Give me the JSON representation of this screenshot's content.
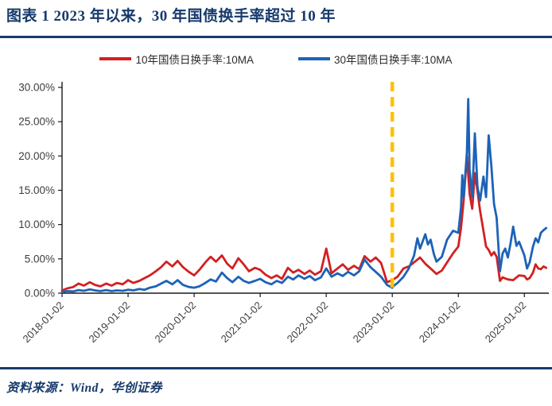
{
  "header": {
    "title": "图表 1  2023 年以来，30 年国债换手率超过 10 年"
  },
  "legend": [
    {
      "label": "10年国债日换手率:10MA",
      "color": "#D22021"
    },
    {
      "label": "30年国债日换手率:10MA",
      "color": "#1C63B7"
    }
  ],
  "footer": {
    "source": "资料来源：Wind，华创证券"
  },
  "colors": {
    "accent_navy": "#173A6C",
    "series_red": "#D22021",
    "series_blue": "#1C63B7",
    "event_line_yellow": "#FFC000",
    "axis_black": "#1a1a1a",
    "tick_text": "#3d3d3d"
  },
  "chart_data": {
    "type": "line",
    "title": "2023 年以来，30 年国债换手率超过 10 年",
    "xlabel": "",
    "ylabel": "",
    "grid": false,
    "legend_position": "top",
    "ylim": [
      0,
      30
    ],
    "x_range": [
      2018.0,
      2025.37
    ],
    "y_ticks": [
      "0.00%",
      "5.00%",
      "10.00%",
      "15.00%",
      "20.00%",
      "25.00%",
      "30.00%"
    ],
    "x_ticks": [
      "2018-01-02",
      "2019-01-02",
      "2020-01-02",
      "2021-01-02",
      "2022-01-02",
      "2023-01-02",
      "2024-01-02",
      "2025-01-02"
    ],
    "annotations": [
      {
        "type": "vline",
        "x": 2023.0,
        "style": "dashed",
        "color": "#FFC000",
        "note": "2023-01-02"
      }
    ],
    "series": [
      {
        "name": "10年国债日换手率:10MA",
        "color": "#D22021",
        "points": [
          [
            2018.0,
            0.4
          ],
          [
            2018.08,
            0.7
          ],
          [
            2018.17,
            0.9
          ],
          [
            2018.25,
            1.4
          ],
          [
            2018.33,
            1.1
          ],
          [
            2018.42,
            1.6
          ],
          [
            2018.5,
            1.2
          ],
          [
            2018.58,
            1.0
          ],
          [
            2018.67,
            1.4
          ],
          [
            2018.75,
            1.1
          ],
          [
            2018.83,
            1.5
          ],
          [
            2018.92,
            1.3
          ],
          [
            2019.0,
            1.9
          ],
          [
            2019.08,
            1.5
          ],
          [
            2019.17,
            1.8
          ],
          [
            2019.25,
            2.2
          ],
          [
            2019.33,
            2.6
          ],
          [
            2019.42,
            3.2
          ],
          [
            2019.5,
            3.8
          ],
          [
            2019.58,
            4.6
          ],
          [
            2019.67,
            3.9
          ],
          [
            2019.75,
            4.7
          ],
          [
            2019.83,
            3.8
          ],
          [
            2019.92,
            3.1
          ],
          [
            2020.0,
            2.6
          ],
          [
            2020.08,
            3.4
          ],
          [
            2020.17,
            4.5
          ],
          [
            2020.25,
            5.3
          ],
          [
            2020.33,
            4.6
          ],
          [
            2020.42,
            5.5
          ],
          [
            2020.5,
            4.3
          ],
          [
            2020.58,
            3.6
          ],
          [
            2020.67,
            5.1
          ],
          [
            2020.75,
            4.2
          ],
          [
            2020.83,
            3.2
          ],
          [
            2020.92,
            3.7
          ],
          [
            2021.0,
            3.4
          ],
          [
            2021.08,
            2.7
          ],
          [
            2021.17,
            2.2
          ],
          [
            2021.25,
            2.6
          ],
          [
            2021.33,
            2.1
          ],
          [
            2021.42,
            3.7
          ],
          [
            2021.5,
            3.0
          ],
          [
            2021.58,
            3.4
          ],
          [
            2021.67,
            2.8
          ],
          [
            2021.75,
            3.3
          ],
          [
            2021.83,
            2.7
          ],
          [
            2021.92,
            3.2
          ],
          [
            2022.0,
            6.5
          ],
          [
            2022.08,
            2.9
          ],
          [
            2022.17,
            3.6
          ],
          [
            2022.25,
            4.2
          ],
          [
            2022.33,
            3.4
          ],
          [
            2022.42,
            4.0
          ],
          [
            2022.5,
            3.5
          ],
          [
            2022.58,
            5.4
          ],
          [
            2022.67,
            4.6
          ],
          [
            2022.75,
            5.2
          ],
          [
            2022.83,
            4.4
          ],
          [
            2022.92,
            1.6
          ],
          [
            2023.0,
            1.9
          ],
          [
            2023.08,
            2.4
          ],
          [
            2023.17,
            3.6
          ],
          [
            2023.25,
            3.9
          ],
          [
            2023.33,
            4.5
          ],
          [
            2023.42,
            5.2
          ],
          [
            2023.5,
            4.3
          ],
          [
            2023.58,
            3.6
          ],
          [
            2023.67,
            2.8
          ],
          [
            2023.75,
            3.3
          ],
          [
            2023.83,
            4.5
          ],
          [
            2023.92,
            5.8
          ],
          [
            2024.0,
            6.8
          ],
          [
            2024.04,
            9.5
          ],
          [
            2024.08,
            13.5
          ],
          [
            2024.13,
            20.0
          ],
          [
            2024.17,
            14.5
          ],
          [
            2024.21,
            12.3
          ],
          [
            2024.25,
            17.5
          ],
          [
            2024.29,
            14.9
          ],
          [
            2024.33,
            12.0
          ],
          [
            2024.38,
            9.1
          ],
          [
            2024.42,
            6.8
          ],
          [
            2024.46,
            6.3
          ],
          [
            2024.5,
            5.5
          ],
          [
            2024.54,
            6.0
          ],
          [
            2024.58,
            5.3
          ],
          [
            2024.63,
            1.8
          ],
          [
            2024.67,
            2.3
          ],
          [
            2024.75,
            2.0
          ],
          [
            2024.83,
            1.9
          ],
          [
            2024.92,
            2.6
          ],
          [
            2025.0,
            2.5
          ],
          [
            2025.04,
            2.0
          ],
          [
            2025.08,
            2.2
          ],
          [
            2025.13,
            3.0
          ],
          [
            2025.17,
            4.2
          ],
          [
            2025.21,
            3.6
          ],
          [
            2025.25,
            3.5
          ],
          [
            2025.29,
            3.9
          ],
          [
            2025.33,
            3.7
          ]
        ]
      },
      {
        "name": "30年国债日换手率:10MA",
        "color": "#1C63B7",
        "points": [
          [
            2018.0,
            0.15
          ],
          [
            2018.08,
            0.3
          ],
          [
            2018.17,
            0.25
          ],
          [
            2018.25,
            0.45
          ],
          [
            2018.33,
            0.35
          ],
          [
            2018.42,
            0.55
          ],
          [
            2018.5,
            0.4
          ],
          [
            2018.58,
            0.3
          ],
          [
            2018.67,
            0.45
          ],
          [
            2018.75,
            0.3
          ],
          [
            2018.83,
            0.4
          ],
          [
            2018.92,
            0.35
          ],
          [
            2019.0,
            0.5
          ],
          [
            2019.08,
            0.4
          ],
          [
            2019.17,
            0.6
          ],
          [
            2019.25,
            0.5
          ],
          [
            2019.33,
            0.8
          ],
          [
            2019.42,
            1.0
          ],
          [
            2019.5,
            1.4
          ],
          [
            2019.58,
            1.8
          ],
          [
            2019.67,
            1.3
          ],
          [
            2019.75,
            1.9
          ],
          [
            2019.83,
            1.2
          ],
          [
            2019.92,
            0.9
          ],
          [
            2020.0,
            0.8
          ],
          [
            2020.08,
            1.0
          ],
          [
            2020.17,
            1.5
          ],
          [
            2020.25,
            2.0
          ],
          [
            2020.33,
            1.7
          ],
          [
            2020.42,
            3.0
          ],
          [
            2020.5,
            2.2
          ],
          [
            2020.58,
            1.6
          ],
          [
            2020.67,
            2.4
          ],
          [
            2020.75,
            1.8
          ],
          [
            2020.83,
            1.5
          ],
          [
            2020.92,
            1.8
          ],
          [
            2021.0,
            2.1
          ],
          [
            2021.08,
            1.6
          ],
          [
            2021.17,
            1.3
          ],
          [
            2021.25,
            1.8
          ],
          [
            2021.33,
            1.5
          ],
          [
            2021.42,
            2.4
          ],
          [
            2021.5,
            2.0
          ],
          [
            2021.58,
            2.6
          ],
          [
            2021.67,
            2.1
          ],
          [
            2021.75,
            2.5
          ],
          [
            2021.83,
            1.9
          ],
          [
            2021.92,
            2.3
          ],
          [
            2022.0,
            3.6
          ],
          [
            2022.08,
            2.4
          ],
          [
            2022.17,
            2.9
          ],
          [
            2022.25,
            2.5
          ],
          [
            2022.33,
            3.1
          ],
          [
            2022.42,
            2.6
          ],
          [
            2022.5,
            3.2
          ],
          [
            2022.58,
            4.9
          ],
          [
            2022.67,
            3.8
          ],
          [
            2022.75,
            3.1
          ],
          [
            2022.83,
            2.4
          ],
          [
            2022.92,
            1.2
          ],
          [
            2023.0,
            0.8
          ],
          [
            2023.04,
            1.2
          ],
          [
            2023.08,
            1.5
          ],
          [
            2023.17,
            2.4
          ],
          [
            2023.25,
            3.6
          ],
          [
            2023.33,
            5.5
          ],
          [
            2023.38,
            8.0
          ],
          [
            2023.42,
            6.5
          ],
          [
            2023.5,
            8.6
          ],
          [
            2023.54,
            7.1
          ],
          [
            2023.58,
            7.8
          ],
          [
            2023.63,
            5.7
          ],
          [
            2023.67,
            4.6
          ],
          [
            2023.75,
            5.3
          ],
          [
            2023.83,
            7.8
          ],
          [
            2023.92,
            9.1
          ],
          [
            2024.0,
            8.8
          ],
          [
            2024.04,
            12.5
          ],
          [
            2024.06,
            17.2
          ],
          [
            2024.08,
            14.0
          ],
          [
            2024.13,
            20.5
          ],
          [
            2024.15,
            28.3
          ],
          [
            2024.17,
            18.0
          ],
          [
            2024.21,
            14.0
          ],
          [
            2024.25,
            23.3
          ],
          [
            2024.29,
            15.5
          ],
          [
            2024.33,
            13.5
          ],
          [
            2024.38,
            17.0
          ],
          [
            2024.42,
            14.0
          ],
          [
            2024.46,
            23.0
          ],
          [
            2024.5,
            18.5
          ],
          [
            2024.54,
            13.0
          ],
          [
            2024.58,
            11.0
          ],
          [
            2024.63,
            3.2
          ],
          [
            2024.67,
            5.8
          ],
          [
            2024.71,
            6.5
          ],
          [
            2024.75,
            5.2
          ],
          [
            2024.79,
            7.2
          ],
          [
            2024.83,
            9.7
          ],
          [
            2024.88,
            6.9
          ],
          [
            2024.92,
            7.5
          ],
          [
            2025.0,
            5.5
          ],
          [
            2025.04,
            3.6
          ],
          [
            2025.08,
            4.5
          ],
          [
            2025.13,
            6.8
          ],
          [
            2025.17,
            8.0
          ],
          [
            2025.21,
            7.4
          ],
          [
            2025.25,
            8.8
          ],
          [
            2025.29,
            9.2
          ],
          [
            2025.33,
            9.5
          ]
        ]
      }
    ]
  }
}
